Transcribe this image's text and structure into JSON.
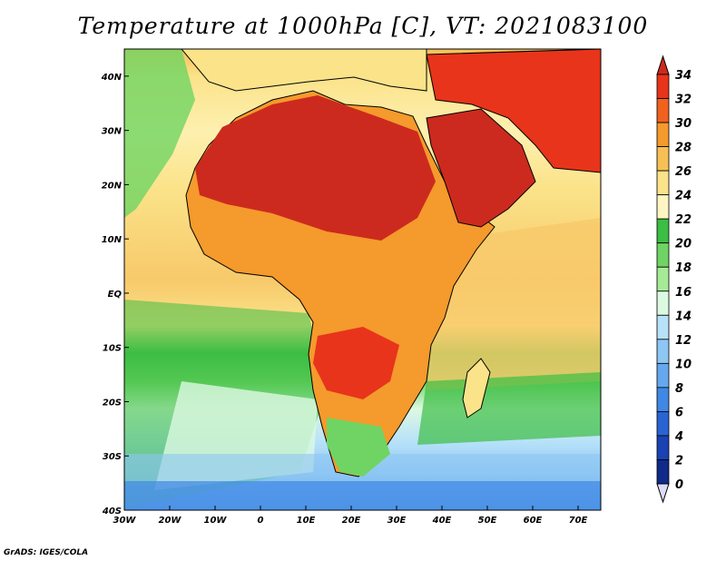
{
  "title": "Temperature at 1000hPa [C], VT: 2021083100",
  "credit": "GrADS: IGES/COLA",
  "map": {
    "lon_range": [
      -30,
      75
    ],
    "lat_range": [
      -40,
      45
    ],
    "lon_ticks": [
      "30W",
      "20W",
      "10W",
      "0",
      "10E",
      "20E",
      "30E",
      "40E",
      "50E",
      "60E",
      "70E"
    ],
    "lat_ticks": [
      "40N",
      "30N",
      "20N",
      "10N",
      "EQ",
      "10S",
      "20S",
      "30S",
      "40S"
    ]
  },
  "colorbar": {
    "labels": [
      "34",
      "32",
      "30",
      "28",
      "26",
      "24",
      "22",
      "20",
      "18",
      "16",
      "14",
      "12",
      "10",
      "8",
      "6",
      "4",
      "2",
      "0"
    ],
    "colors": [
      "#e8341b",
      "#f0621e",
      "#f59a2c",
      "#f7c055",
      "#fbe38a",
      "#fdf6c2",
      "#3cbd44",
      "#6fd463",
      "#a6ea98",
      "#dcf9e2",
      "#b8e2f8",
      "#8ec6f4",
      "#66a8ee",
      "#3f88e4",
      "#2a64d3",
      "#1a42b3",
      "#102a8a",
      "#d8d8fb"
    ],
    "top_arrow_color": "#cc2a1e",
    "bottom_arrow_color": "#dcdcfb"
  }
}
